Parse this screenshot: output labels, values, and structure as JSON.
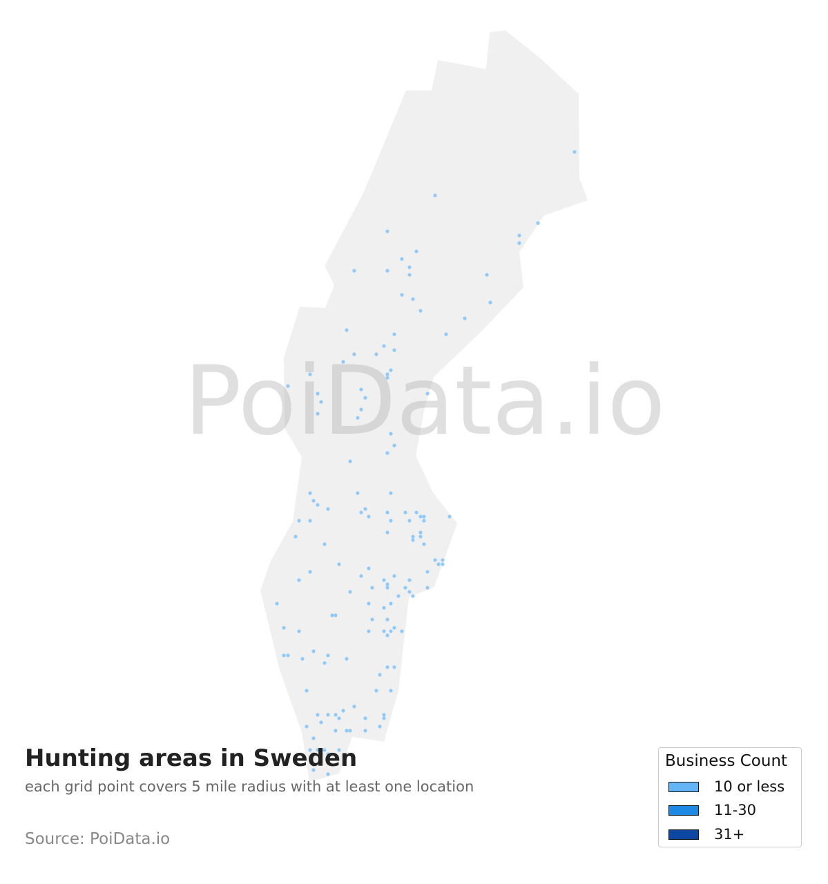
{
  "map": {
    "region": "Sweden",
    "land_color": "#f0f0f0",
    "point_color": "#90caf9"
  },
  "watermark": "PoiData.io",
  "title": "Hunting areas in Sweden",
  "subtitle": "each grid point covers 5 mile radius with at least one location",
  "source": "Source: PoiData.io",
  "legend": {
    "title": "Business Count",
    "items": [
      {
        "label": "10 or less",
        "color": "#64b5f6"
      },
      {
        "label": "11-30",
        "color": "#1e88e5"
      },
      {
        "label": "31+",
        "color": "#0d47a1"
      }
    ]
  }
}
